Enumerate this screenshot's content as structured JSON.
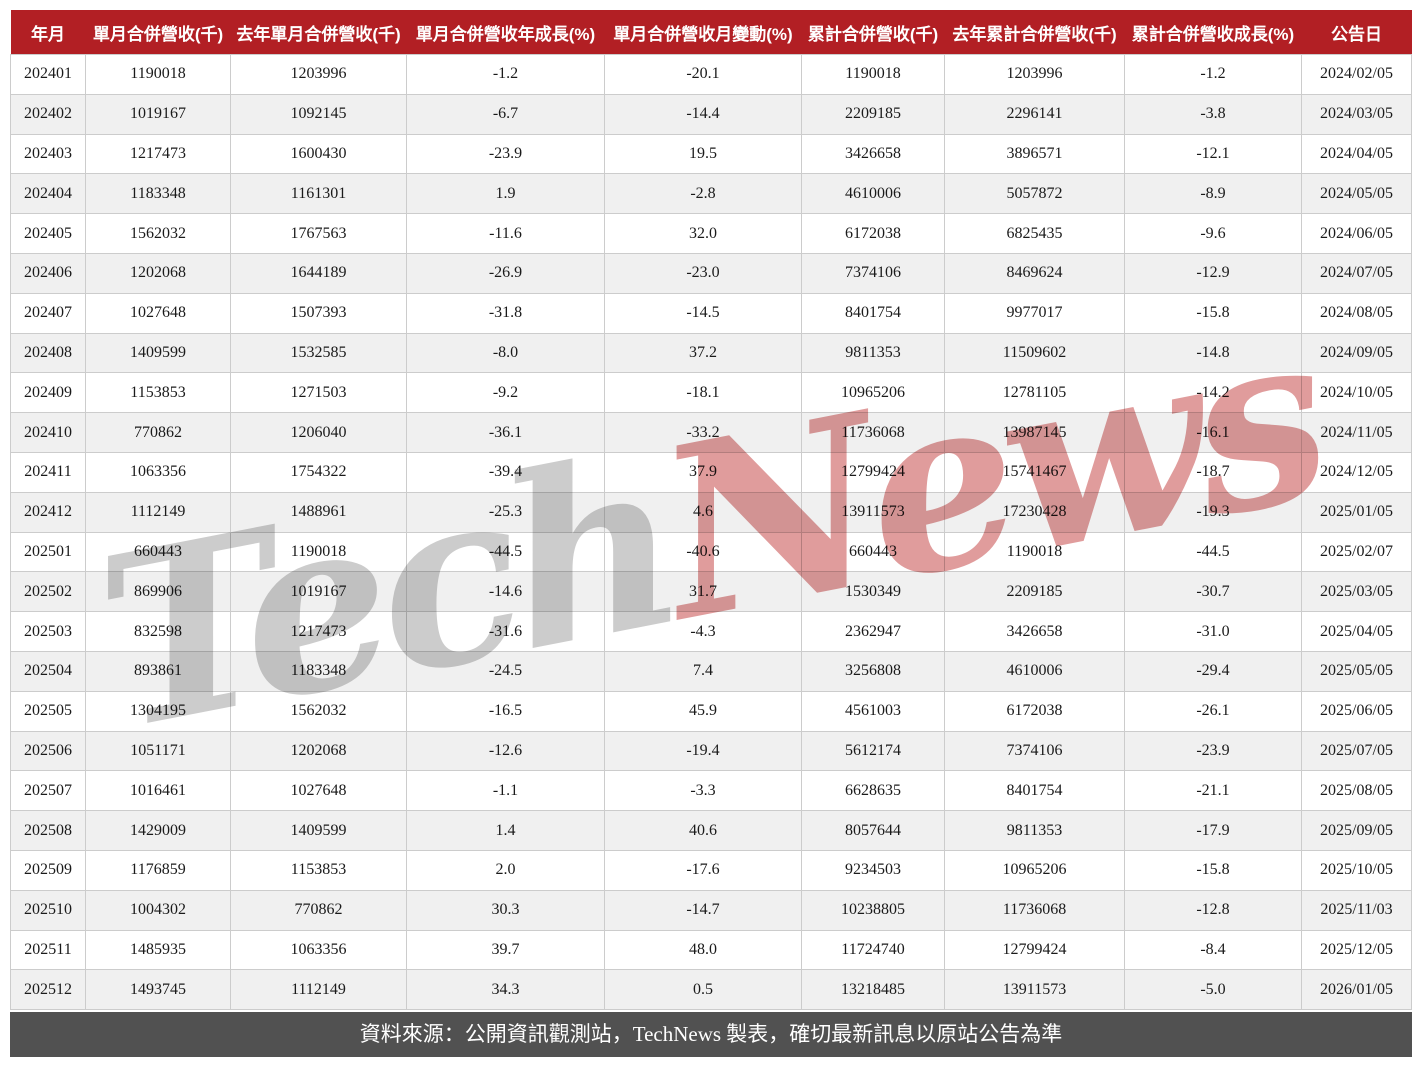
{
  "chart_data": {
    "type": "table",
    "title": "月營收統計表",
    "columns": [
      "年月",
      "單月合併營收(千)",
      "去年單月合併營收(千)",
      "單月合併營收年成長(%)",
      "單月合併營收月變動(%)",
      "累計合併營收(千)",
      "去年累計合併營收(千)",
      "累計合併營收成長(%)",
      "公告日"
    ],
    "rows": [
      [
        "202401",
        "1190018",
        "1203996",
        "-1.2",
        "-20.1",
        "1190018",
        "1203996",
        "-1.2",
        "2024/02/05"
      ],
      [
        "202402",
        "1019167",
        "1092145",
        "-6.7",
        "-14.4",
        "2209185",
        "2296141",
        "-3.8",
        "2024/03/05"
      ],
      [
        "202403",
        "1217473",
        "1600430",
        "-23.9",
        "19.5",
        "3426658",
        "3896571",
        "-12.1",
        "2024/04/05"
      ],
      [
        "202404",
        "1183348",
        "1161301",
        "1.9",
        "-2.8",
        "4610006",
        "5057872",
        "-8.9",
        "2024/05/05"
      ],
      [
        "202405",
        "1562032",
        "1767563",
        "-11.6",
        "32.0",
        "6172038",
        "6825435",
        "-9.6",
        "2024/06/05"
      ],
      [
        "202406",
        "1202068",
        "1644189",
        "-26.9",
        "-23.0",
        "7374106",
        "8469624",
        "-12.9",
        "2024/07/05"
      ],
      [
        "202407",
        "1027648",
        "1507393",
        "-31.8",
        "-14.5",
        "8401754",
        "9977017",
        "-15.8",
        "2024/08/05"
      ],
      [
        "202408",
        "1409599",
        "1532585",
        "-8.0",
        "37.2",
        "9811353",
        "11509602",
        "-14.8",
        "2024/09/05"
      ],
      [
        "202409",
        "1153853",
        "1271503",
        "-9.2",
        "-18.1",
        "10965206",
        "12781105",
        "-14.2",
        "2024/10/05"
      ],
      [
        "202410",
        "770862",
        "1206040",
        "-36.1",
        "-33.2",
        "11736068",
        "13987145",
        "-16.1",
        "2024/11/05"
      ],
      [
        "202411",
        "1063356",
        "1754322",
        "-39.4",
        "37.9",
        "12799424",
        "15741467",
        "-18.7",
        "2024/12/05"
      ],
      [
        "202412",
        "1112149",
        "1488961",
        "-25.3",
        "4.6",
        "13911573",
        "17230428",
        "-19.3",
        "2025/01/05"
      ],
      [
        "202501",
        "660443",
        "1190018",
        "-44.5",
        "-40.6",
        "660443",
        "1190018",
        "-44.5",
        "2025/02/07"
      ],
      [
        "202502",
        "869906",
        "1019167",
        "-14.6",
        "31.7",
        "1530349",
        "2209185",
        "-30.7",
        "2025/03/05"
      ],
      [
        "202503",
        "832598",
        "1217473",
        "-31.6",
        "-4.3",
        "2362947",
        "3426658",
        "-31.0",
        "2025/04/05"
      ],
      [
        "202504",
        "893861",
        "1183348",
        "-24.5",
        "7.4",
        "3256808",
        "4610006",
        "-29.4",
        "2025/05/05"
      ],
      [
        "202505",
        "1304195",
        "1562032",
        "-16.5",
        "45.9",
        "4561003",
        "6172038",
        "-26.1",
        "2025/06/05"
      ],
      [
        "202506",
        "1051171",
        "1202068",
        "-12.6",
        "-19.4",
        "5612174",
        "7374106",
        "-23.9",
        "2025/07/05"
      ],
      [
        "202507",
        "1016461",
        "1027648",
        "-1.1",
        "-3.3",
        "6628635",
        "8401754",
        "-21.1",
        "2025/08/05"
      ],
      [
        "202508",
        "1429009",
        "1409599",
        "1.4",
        "40.6",
        "8057644",
        "9811353",
        "-17.9",
        "2025/09/05"
      ],
      [
        "202509",
        "1176859",
        "1153853",
        "2.0",
        "-17.6",
        "9234503",
        "10965206",
        "-15.8",
        "2025/10/05"
      ],
      [
        "202510",
        "1004302",
        "770862",
        "30.3",
        "-14.7",
        "10238805",
        "11736068",
        "-12.8",
        "2025/11/03"
      ],
      [
        "202511",
        "1485935",
        "1063356",
        "39.7",
        "48.0",
        "11724740",
        "12799424",
        "-8.4",
        "2025/12/05"
      ],
      [
        "202512",
        "1493745",
        "1112149",
        "34.3",
        "0.5",
        "13218485",
        "13911573",
        "-5.0",
        "2026/01/05"
      ]
    ]
  },
  "watermark": {
    "part1": "Tech",
    "part2": "News"
  },
  "footer": {
    "text": "資料來源：公開資訊觀測站，TechNews 製表，確切最新訊息以原站公告為準"
  },
  "colors": {
    "header_bg": "#b21f24",
    "row_alt_bg": "#f0f0f0",
    "footer_bg": "#515151",
    "border": "#cccccc",
    "watermark_gray": "#cccccc",
    "watermark_red": "#e09c9c"
  }
}
